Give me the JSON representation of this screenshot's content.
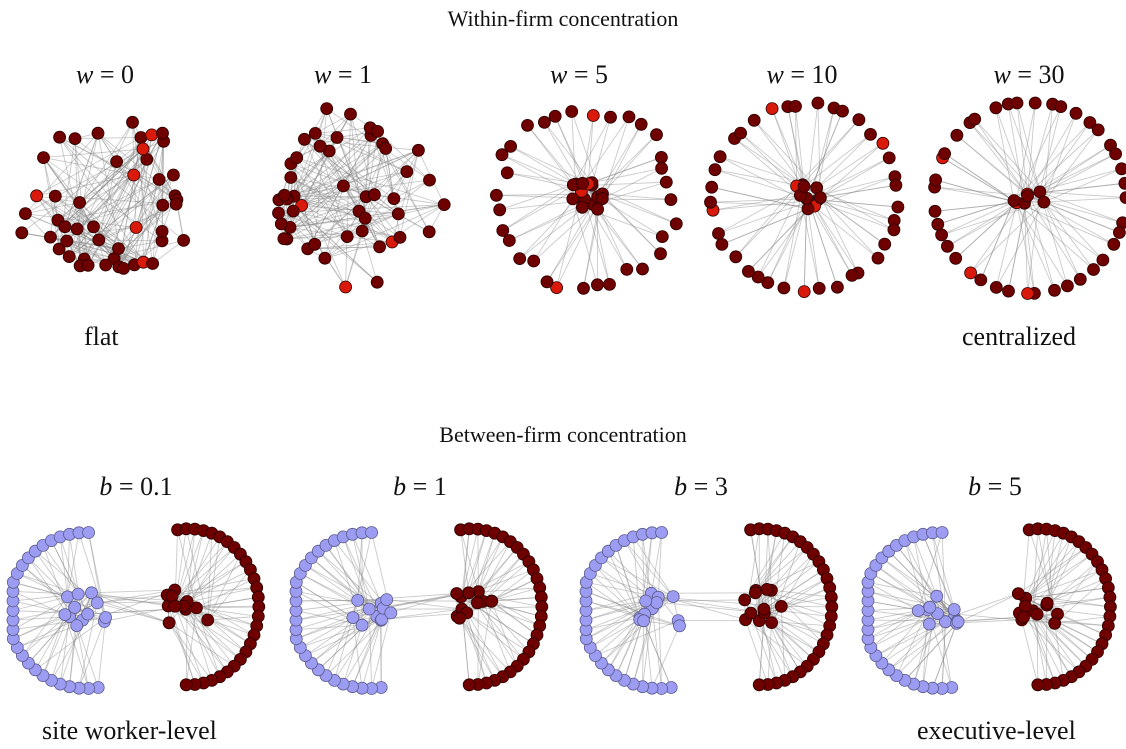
{
  "top_section": {
    "title": "Within-firm concentration",
    "panels": [
      {
        "symbol": "w",
        "value": "0"
      },
      {
        "symbol": "w",
        "value": "1"
      },
      {
        "symbol": "w",
        "value": "5"
      },
      {
        "symbol": "w",
        "value": "10"
      },
      {
        "symbol": "w",
        "value": "30"
      }
    ],
    "left_caption": "flat",
    "right_caption": "centralized"
  },
  "bottom_section": {
    "title": "Between-firm concentration",
    "panels": [
      {
        "symbol": "b",
        "value": "0.1"
      },
      {
        "symbol": "b",
        "value": "1"
      },
      {
        "symbol": "b",
        "value": "3"
      },
      {
        "symbol": "b",
        "value": "5"
      }
    ],
    "left_caption": "site worker-level",
    "right_caption": "executive-level"
  },
  "colors": {
    "node_dark_red": "#6e0000",
    "node_bright_red": "#d91a0a",
    "node_lavender": "#9c9cf2",
    "edge": "#8a8a8a"
  }
}
